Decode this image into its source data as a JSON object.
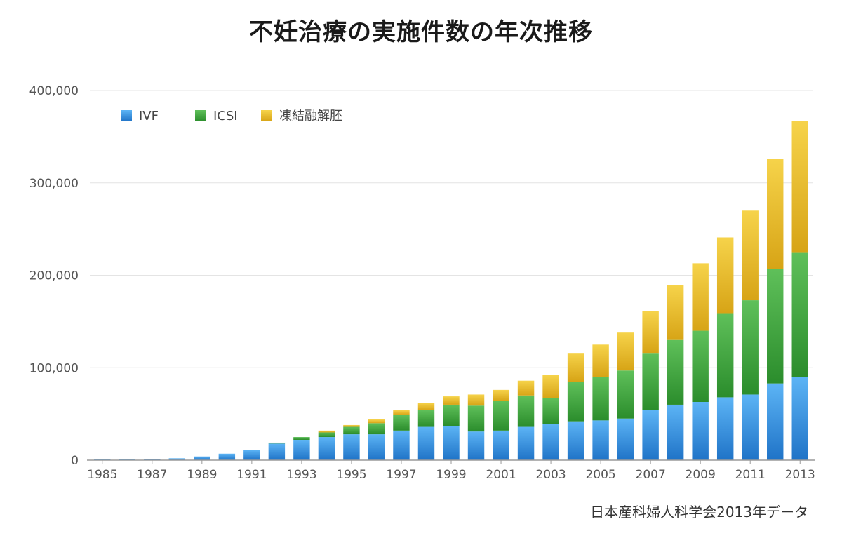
{
  "chart_data": {
    "type": "bar",
    "stacked": true,
    "title": "不妊治療の実施件数の年次推移",
    "xlabel": "",
    "ylabel": "",
    "ylim": [
      0,
      400000
    ],
    "yticks": [
      "0",
      "100,000",
      "200,000",
      "300,000",
      "400,000"
    ],
    "grid": true,
    "legend_position": "top-left",
    "categories": [
      "1985",
      "1986",
      "1987",
      "1988",
      "1989",
      "1990",
      "1991",
      "1992",
      "1993",
      "1994",
      "1995",
      "1996",
      "1997",
      "1998",
      "1999",
      "2000",
      "2001",
      "2002",
      "2003",
      "2004",
      "2005",
      "2006",
      "2007",
      "2008",
      "2009",
      "2010",
      "2011",
      "2012",
      "2013"
    ],
    "xtick_labels": [
      "1985",
      "1987",
      "1989",
      "1991",
      "1993",
      "1995",
      "1997",
      "1999",
      "2001",
      "2003",
      "2005",
      "2007",
      "2009",
      "2011",
      "2013"
    ],
    "series": [
      {
        "name": "IVF",
        "color": "#2e86d8",
        "values": [
          1000,
          1000,
          1500,
          2000,
          4000,
          7000,
          11000,
          18000,
          22000,
          25000,
          28000,
          28000,
          32000,
          36000,
          37000,
          31000,
          32000,
          36000,
          39000,
          42000,
          43000,
          45000,
          54000,
          60000,
          63000,
          68000,
          71000,
          83000,
          90000
        ]
      },
      {
        "name": "ICSI",
        "color": "#3aa33a",
        "values": [
          0,
          0,
          0,
          0,
          0,
          0,
          0,
          1000,
          3000,
          5000,
          8000,
          12000,
          17000,
          18000,
          23000,
          28000,
          32000,
          34000,
          28000,
          43000,
          47000,
          52000,
          62000,
          70000,
          77000,
          91000,
          102000,
          124000,
          135000
        ]
      },
      {
        "name": "凍結融解胚",
        "color": "#e8b821",
        "values": [
          0,
          0,
          0,
          0,
          0,
          0,
          0,
          0,
          0,
          2000,
          2000,
          4000,
          5000,
          8000,
          9000,
          12000,
          12000,
          16000,
          25000,
          31000,
          35000,
          41000,
          45000,
          59000,
          73000,
          82000,
          97000,
          119000,
          142000
        ]
      }
    ],
    "source_note": "日本産科婦人科学会2013年データ"
  }
}
